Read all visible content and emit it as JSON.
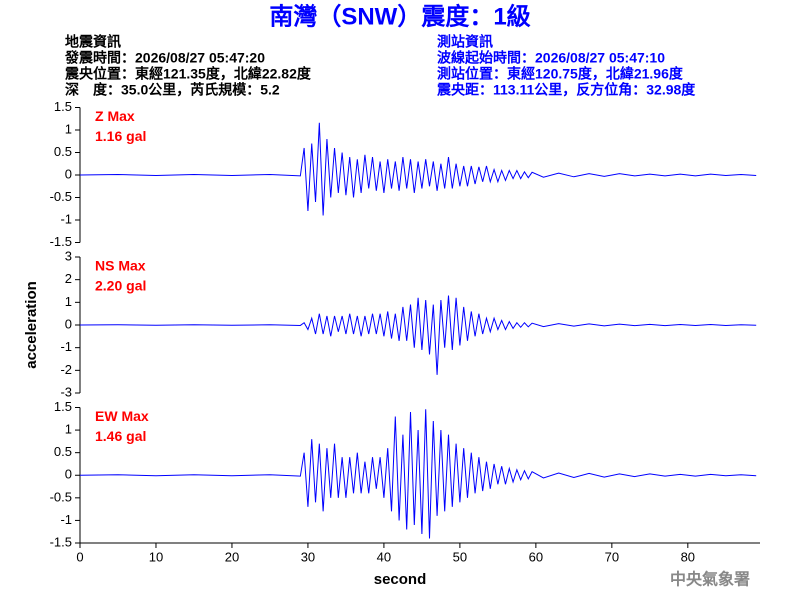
{
  "header": {
    "title": "南灣（SNW）震度：1級",
    "left": [
      "地震資訊",
      "發震時間：2026/08/27 05:47:20",
      "震央位置：東經121.35度，北緯22.82度",
      "深　度：35.0公里，芮氏規模：5.2"
    ],
    "right": [
      "測站資訊",
      "波線起始時間：2026/08/27 05:47:10",
      "測站位置：東經120.75度，北緯21.96度",
      "震央距：113.11公里，反方位角：32.98度"
    ]
  },
  "footer": "中央氣象署",
  "chart_data": [
    {
      "type": "line",
      "label": "Z Max",
      "peak": "1.16 gal",
      "color": "#0000ff",
      "x": [
        0,
        5,
        10,
        15,
        20,
        25,
        29,
        29.5,
        30,
        30.5,
        31,
        31.5,
        32,
        32.5,
        33,
        33.5,
        34,
        34.5,
        35,
        35.5,
        36,
        36.5,
        37,
        37.5,
        38,
        38.5,
        39,
        39.5,
        40,
        40.5,
        41,
        41.5,
        42,
        42.5,
        43,
        43.5,
        44,
        44.5,
        45,
        45.5,
        46,
        46.5,
        47,
        47.5,
        48,
        48.5,
        49,
        49.5,
        50,
        50.5,
        51,
        51.5,
        52,
        52.5,
        53,
        53.5,
        54,
        54.5,
        55,
        55.5,
        56,
        56.5,
        57,
        57.5,
        58,
        58.5,
        59,
        59.5,
        61,
        63,
        65,
        67,
        69,
        71,
        73,
        75,
        77,
        79,
        81,
        83,
        85,
        87,
        89
      ],
      "values": [
        0,
        0.01,
        -0.01,
        0.01,
        -0.01,
        0.01,
        -0.02,
        0.6,
        -0.8,
        0.7,
        -0.6,
        1.16,
        -0.9,
        0.8,
        -0.5,
        0.6,
        -0.4,
        0.5,
        -0.45,
        0.4,
        -0.5,
        0.35,
        -0.4,
        0.45,
        -0.3,
        0.4,
        -0.35,
        0.3,
        -0.4,
        0.35,
        -0.3,
        0.3,
        -0.35,
        0.4,
        -0.3,
        0.35,
        -0.4,
        0.3,
        -0.3,
        0.35,
        -0.25,
        0.3,
        -0.35,
        0.25,
        -0.3,
        0.4,
        -0.3,
        0.25,
        -0.25,
        0.2,
        -0.25,
        0.2,
        -0.2,
        0.18,
        -0.15,
        0.2,
        -0.15,
        0.12,
        -0.15,
        0.1,
        -0.12,
        0.1,
        -0.08,
        0.1,
        -0.08,
        0.07,
        -0.06,
        0.06,
        -0.05,
        0.04,
        -0.04,
        0.03,
        -0.03,
        0.03,
        -0.02,
        0.02,
        -0.02,
        0.02,
        -0.02,
        0.02,
        -0.01,
        0.01,
        -0.01
      ],
      "xlim": [
        0,
        89.5
      ],
      "ylim": [
        -1.5,
        1.5
      ],
      "yticks": [
        -1.5,
        -1,
        -0.5,
        0,
        0.5,
        1,
        1.5
      ]
    },
    {
      "type": "line",
      "label": "NS Max",
      "peak": "2.20 gal",
      "color": "#0000ff",
      "ylabel": "acceleration",
      "x": [
        0,
        5,
        10,
        15,
        20,
        25,
        29,
        29.5,
        30,
        30.5,
        31,
        31.5,
        32,
        32.5,
        33,
        33.5,
        34,
        34.5,
        35,
        35.5,
        36,
        36.5,
        37,
        37.5,
        38,
        38.5,
        39,
        39.5,
        40,
        40.5,
        41,
        41.5,
        42,
        42.5,
        43,
        43.5,
        44,
        44.5,
        45,
        45.5,
        46,
        46.5,
        47,
        47.5,
        48,
        48.5,
        49,
        49.5,
        50,
        50.5,
        51,
        51.5,
        52,
        52.5,
        53,
        53.5,
        54,
        54.5,
        55,
        55.5,
        56,
        56.5,
        57,
        57.5,
        58,
        58.5,
        59,
        59.5,
        61,
        63,
        65,
        67,
        69,
        71,
        73,
        75,
        77,
        79,
        81,
        83,
        85,
        87,
        89
      ],
      "values": [
        0,
        0.01,
        -0.01,
        0.01,
        -0.01,
        0.01,
        -0.02,
        0.1,
        -0.2,
        0.3,
        -0.4,
        0.5,
        -0.4,
        0.4,
        -0.5,
        0.4,
        -0.3,
        0.4,
        -0.4,
        0.5,
        -0.4,
        0.4,
        -0.5,
        0.4,
        -0.4,
        0.5,
        -0.4,
        0.5,
        -0.5,
        0.6,
        -0.6,
        0.5,
        -0.7,
        0.8,
        -0.7,
        0.9,
        -1.0,
        1.2,
        -1.1,
        1.1,
        -1.3,
        0.9,
        -2.2,
        1.1,
        -1.0,
        1.3,
        -1.1,
        1.2,
        -0.9,
        0.8,
        -0.7,
        0.6,
        -0.5,
        0.5,
        -0.4,
        0.3,
        -0.3,
        0.3,
        -0.2,
        0.2,
        -0.2,
        0.15,
        -0.15,
        0.1,
        -0.1,
        0.1,
        -0.08,
        0.08,
        -0.07,
        0.06,
        -0.05,
        0.05,
        -0.04,
        0.04,
        -0.03,
        0.03,
        -0.03,
        0.02,
        -0.02,
        0.02,
        -0.02,
        0.01,
        -0.01
      ],
      "xlim": [
        0,
        89.5
      ],
      "ylim": [
        -3,
        3
      ],
      "yticks": [
        -3,
        -2,
        -1,
        0,
        1,
        2,
        3
      ]
    },
    {
      "type": "line",
      "label": "EW Max",
      "peak": "1.46 gal",
      "color": "#0000ff",
      "xlabel": "second",
      "x": [
        0,
        5,
        10,
        15,
        20,
        25,
        29,
        29.5,
        30,
        30.5,
        31,
        31.5,
        32,
        32.5,
        33,
        33.5,
        34,
        34.5,
        35,
        35.5,
        36,
        36.5,
        37,
        37.5,
        38,
        38.5,
        39,
        39.5,
        40,
        40.5,
        41,
        41.5,
        42,
        42.5,
        43,
        43.5,
        44,
        44.5,
        45,
        45.5,
        46,
        46.5,
        47,
        47.5,
        48,
        48.5,
        49,
        49.5,
        50,
        50.5,
        51,
        51.5,
        52,
        52.5,
        53,
        53.5,
        54,
        54.5,
        55,
        55.5,
        56,
        56.5,
        57,
        57.5,
        58,
        58.5,
        59,
        59.5,
        61,
        63,
        65,
        67,
        69,
        71,
        73,
        75,
        77,
        79,
        81,
        83,
        85,
        87,
        89
      ],
      "values": [
        0,
        0.01,
        -0.01,
        0.01,
        -0.01,
        0.01,
        -0.02,
        0.5,
        -0.7,
        0.8,
        -0.6,
        0.7,
        -0.8,
        0.6,
        -0.5,
        0.7,
        -0.5,
        0.4,
        -0.5,
        0.4,
        -0.4,
        0.5,
        -0.4,
        0.3,
        -0.4,
        0.4,
        -0.3,
        0.4,
        -0.5,
        0.6,
        -0.8,
        1.3,
        -1.0,
        0.9,
        -1.2,
        1.4,
        -1.1,
        1.0,
        -1.3,
        1.46,
        -1.4,
        1.2,
        -0.9,
        1.0,
        -0.8,
        0.9,
        -0.7,
        0.7,
        -0.6,
        0.6,
        -0.5,
        0.5,
        -0.4,
        0.4,
        -0.35,
        0.3,
        -0.3,
        0.25,
        -0.2,
        0.2,
        -0.2,
        0.15,
        -0.15,
        0.12,
        -0.1,
        0.1,
        -0.08,
        0.08,
        -0.06,
        0.05,
        -0.05,
        0.04,
        -0.04,
        0.03,
        -0.03,
        0.03,
        -0.02,
        0.02,
        -0.02,
        0.02,
        -0.01,
        0.01,
        -0.01
      ],
      "xlim": [
        0,
        89.5
      ],
      "ylim": [
        -1.5,
        1.5
      ],
      "yticks": [
        -1.5,
        -1,
        -0.5,
        0,
        0.5,
        1,
        1.5
      ],
      "xticks": [
        0,
        10,
        20,
        30,
        40,
        50,
        60,
        70,
        80
      ]
    }
  ]
}
